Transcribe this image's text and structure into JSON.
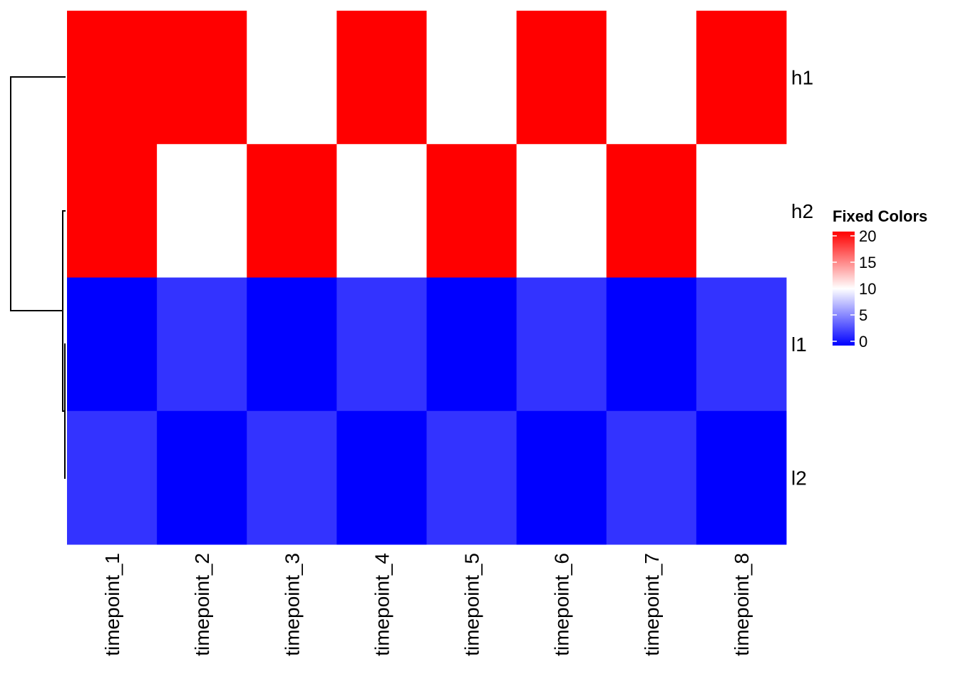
{
  "chart_data": {
    "type": "heatmap",
    "title": "",
    "rows": [
      "h1",
      "h2",
      "l1",
      "l2"
    ],
    "columns": [
      "timepoint_1",
      "timepoint_2",
      "timepoint_3",
      "timepoint_4",
      "timepoint_5",
      "timepoint_6",
      "timepoint_7",
      "timepoint_8"
    ],
    "values": [
      [
        20,
        20,
        10,
        20,
        10,
        20,
        10,
        20
      ],
      [
        20,
        10,
        20,
        10,
        20,
        10,
        20,
        10
      ],
      [
        0,
        2,
        0,
        2,
        0,
        2,
        0,
        2
      ],
      [
        2,
        0,
        2,
        0,
        2,
        0,
        2,
        0
      ]
    ],
    "row_dendrogram": true,
    "legend": {
      "title": "Fixed Colors",
      "ticks": [
        20,
        15,
        10,
        5,
        0
      ],
      "tick_labels": [
        "20",
        "15",
        "10",
        "5",
        "0"
      ],
      "color_stops": [
        {
          "value": 0,
          "color": "#0000ff"
        },
        {
          "value": 10,
          "color": "#ffffff"
        },
        {
          "value": 20,
          "color": "#ff0000"
        }
      ],
      "placement": "right"
    }
  }
}
